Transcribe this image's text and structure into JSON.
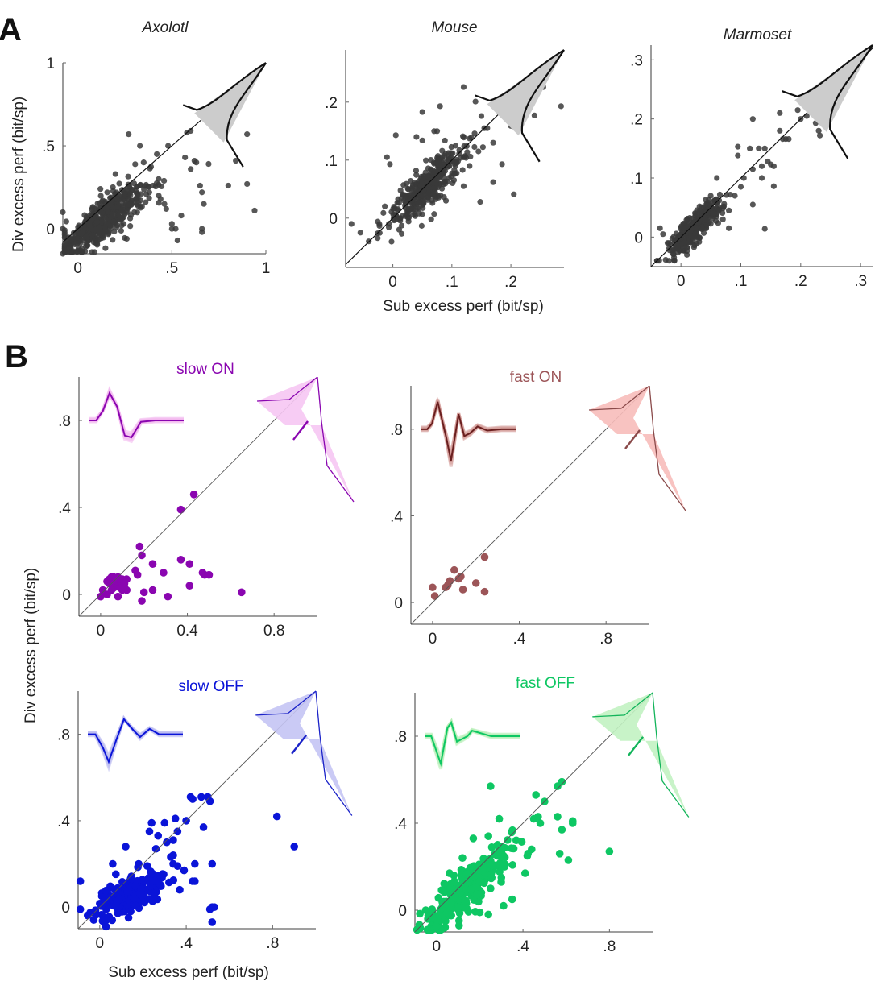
{
  "figure": {
    "panel_a_letter": "A",
    "panel_b_letter": "B",
    "panel_a_ylabel": "Div excess perf (bit/sp)",
    "panel_a_xlabel": "Sub excess perf (bit/sp)",
    "panel_b_ylabel": "Div excess perf (bit/sp)",
    "panel_b_xlabel": "Sub excess perf (bit/sp)"
  },
  "chart_data": [
    {
      "id": "axolotl",
      "type": "scatter",
      "title": "Axolotl",
      "xlabel": "",
      "ylabel": "Div excess perf (bit/sp)",
      "xlim": [
        -0.08,
        1.0
      ],
      "ylim": [
        -0.15,
        1.0
      ],
      "xticks": [
        0,
        0.5,
        1
      ],
      "xtick_labels": [
        "0",
        ".5",
        "1"
      ],
      "yticks": [
        0,
        0.5,
        1
      ],
      "ytick_labels": [
        "0",
        ".5",
        "1"
      ],
      "color": "#3a3a3a",
      "hist_fill": "#cccccc",
      "hist_line": "#111111",
      "identity_line": true,
      "cluster": {
        "n": 520,
        "cx": 0.1,
        "cy": 0.05,
        "spread": 0.1,
        "slope": 0.85,
        "seed": 11
      },
      "points": [
        [
          0.27,
          0.57
        ],
        [
          0.58,
          0.58
        ],
        [
          0.6,
          0.59
        ],
        [
          0.33,
          0.5
        ],
        [
          0.57,
          0.43
        ],
        [
          0.62,
          0.41
        ],
        [
          0.63,
          0.4
        ],
        [
          0.84,
          0.41
        ],
        [
          0.9,
          0.57
        ],
        [
          0.6,
          0.36
        ],
        [
          0.65,
          0.26
        ],
        [
          0.66,
          0.22
        ],
        [
          0.67,
          0.15
        ],
        [
          0.8,
          0.26
        ],
        [
          0.9,
          0.27
        ],
        [
          0.94,
          0.11
        ],
        [
          0.66,
          0.0
        ],
        [
          0.66,
          -0.02
        ],
        [
          0.53,
          -0.07
        ],
        [
          0.52,
          0.0
        ],
        [
          0.5,
          0.0
        ],
        [
          0.5,
          0.03
        ],
        [
          0.55,
          0.08
        ],
        [
          0.47,
          0.12
        ],
        [
          0.46,
          0.15
        ],
        [
          0.43,
          0.2
        ],
        [
          0.4,
          0.26
        ],
        [
          0.43,
          0.3
        ],
        [
          0.38,
          0.22
        ],
        [
          0.44,
          0.18
        ],
        [
          0.36,
          0.16
        ],
        [
          0.3,
          0.1
        ],
        [
          0.26,
          -0.06
        ],
        [
          -0.08,
          0.1
        ],
        [
          -0.08,
          0.0
        ],
        [
          -0.08,
          -0.15
        ],
        [
          0.35,
          0.4
        ],
        [
          0.42,
          0.45
        ],
        [
          0.2,
          0.33
        ],
        [
          0.12,
          0.24
        ],
        [
          0.48,
          0.5
        ]
      ],
      "hist_marker": "black-outline"
    },
    {
      "id": "mouse",
      "type": "scatter",
      "title": "Mouse",
      "xlabel": "Sub excess perf (bit/sp)",
      "ylabel": "",
      "xlim": [
        -0.08,
        0.29
      ],
      "ylim": [
        -0.085,
        0.29
      ],
      "xticks": [
        0,
        0.1,
        0.2
      ],
      "xtick_labels": [
        "0",
        ".1",
        ".2"
      ],
      "yticks": [
        0,
        0.1,
        0.2
      ],
      "ytick_labels": [
        "0",
        ".1",
        ".2"
      ],
      "color": "#3a3a3a",
      "hist_fill": "#cccccc",
      "hist_line": "#111111",
      "identity_line": true,
      "cluster": {
        "n": 380,
        "cx": 0.045,
        "cy": 0.05,
        "spread": 0.03,
        "slope": 0.9,
        "seed": 23
      },
      "points": [
        [
          -0.07,
          -0.01
        ],
        [
          -0.055,
          -0.025
        ],
        [
          0.015,
          -0.027
        ],
        [
          0.005,
          0.143
        ],
        [
          0.04,
          0.14
        ],
        [
          0.05,
          0.134
        ],
        [
          0.05,
          0.183
        ],
        [
          0.08,
          0.193
        ],
        [
          0.12,
          0.226
        ],
        [
          0.14,
          0.201
        ],
        [
          0.15,
          0.176
        ],
        [
          0.155,
          0.155
        ],
        [
          0.17,
          0.13
        ],
        [
          0.17,
          0.062
        ],
        [
          0.185,
          0.093
        ],
        [
          0.2,
          0.159
        ],
        [
          0.205,
          0.041
        ],
        [
          0.148,
          0.028
        ],
        [
          0.24,
          0.177
        ],
        [
          0.255,
          0.226
        ],
        [
          0.26,
          0.254
        ],
        [
          0.285,
          0.193
        ],
        [
          0.12,
          0.055
        ],
        [
          0.09,
          0.03
        ],
        [
          0.065,
          -0.002
        ],
        [
          0.07,
          0.007
        ],
        [
          -0.01,
          0.105
        ],
        [
          -0.005,
          0.093
        ],
        [
          0.07,
          0.15
        ],
        [
          0.075,
          0.15
        ],
        [
          0.145,
          0.115
        ],
        [
          0.13,
          0.09
        ],
        [
          0.16,
          0.155
        ]
      ]
    },
    {
      "id": "marmoset",
      "type": "scatter",
      "title": "Marmoset",
      "xlabel": "",
      "ylabel": "",
      "xlim": [
        -0.05,
        0.32
      ],
      "ylim": [
        -0.05,
        0.325
      ],
      "xticks": [
        0,
        0.1,
        0.2,
        0.3
      ],
      "xtick_labels": [
        "0",
        ".1",
        ".2",
        ".3"
      ],
      "yticks": [
        0,
        0.1,
        0.2,
        0.3
      ],
      "ytick_labels": [
        "0",
        ".1",
        ".2",
        ".3"
      ],
      "color": "#3a3a3a",
      "hist_fill": "#cccccc",
      "hist_line": "#111111",
      "identity_line": true,
      "cluster": {
        "n": 330,
        "cx": 0.02,
        "cy": 0.02,
        "spread": 0.02,
        "slope": 0.98,
        "seed": 37
      },
      "points": [
        [
          0.12,
          0.2
        ],
        [
          0.165,
          0.21
        ],
        [
          0.195,
          0.215
        ],
        [
          0.22,
          0.225
        ],
        [
          0.2,
          0.2
        ],
        [
          0.21,
          0.205
        ],
        [
          0.225,
          0.193
        ],
        [
          0.23,
          0.18
        ],
        [
          0.232,
          0.172
        ],
        [
          0.165,
          0.18
        ],
        [
          0.17,
          0.166
        ],
        [
          0.175,
          0.166
        ],
        [
          0.18,
          0.166
        ],
        [
          0.095,
          0.153
        ],
        [
          0.095,
          0.138
        ],
        [
          0.115,
          0.15
        ],
        [
          0.13,
          0.15
        ],
        [
          0.14,
          0.15
        ],
        [
          0.15,
          0.123
        ],
        [
          0.155,
          0.12
        ],
        [
          0.155,
          0.086
        ],
        [
          0.14,
          0.014
        ],
        [
          0.12,
          0.055
        ],
        [
          0.08,
          0.045
        ],
        [
          0.065,
          0.072
        ],
        [
          0.06,
          0.1
        ],
        [
          0.105,
          0.1
        ],
        [
          0.12,
          0.115
        ],
        [
          0.135,
          0.1
        ],
        [
          0.09,
          0.07
        ],
        [
          0.1,
          0.085
        ],
        [
          -0.035,
          0.015
        ],
        [
          -0.03,
          0.005
        ],
        [
          -0.02,
          -0.01
        ],
        [
          0.01,
          -0.03
        ],
        [
          0.07,
          0.03
        ],
        [
          0.08,
          0.015
        ],
        [
          0.055,
          0.04
        ],
        [
          0.135,
          0.12
        ],
        [
          0.145,
          0.128
        ]
      ]
    },
    {
      "id": "slow-on",
      "type": "scatter",
      "title": "slow ON",
      "xlabel": "",
      "ylabel": "",
      "xlim": [
        -0.1,
        1.0
      ],
      "ylim": [
        -0.1,
        1.0
      ],
      "xticks": [
        0,
        0.4,
        0.8
      ],
      "xtick_labels": [
        "0",
        "0.4",
        "0.8"
      ],
      "yticks": [
        0,
        0.4,
        0.8
      ],
      "ytick_labels": [
        "0",
        ".4",
        ".8"
      ],
      "color": "#8a06b0",
      "hist_fill": "#f6c6f3",
      "hist_line": "#8a06b0",
      "trace_light": "#f3b6ef",
      "identity_line": true,
      "cluster": {
        "n": 0
      },
      "points": [
        [
          0.43,
          0.46
        ],
        [
          0.37,
          0.39
        ],
        [
          0.18,
          0.22
        ],
        [
          0.19,
          0.18
        ],
        [
          0.24,
          0.14
        ],
        [
          0.37,
          0.16
        ],
        [
          0.41,
          0.14
        ],
        [
          0.47,
          0.1
        ],
        [
          0.48,
          0.09
        ],
        [
          0.5,
          0.09
        ],
        [
          0.29,
          0.1
        ],
        [
          0.41,
          0.04
        ],
        [
          0.24,
          0.02
        ],
        [
          0.2,
          0.01
        ],
        [
          0.19,
          -0.03
        ],
        [
          0.31,
          -0.01
        ],
        [
          0.65,
          0.01
        ],
        [
          0.16,
          0.11
        ],
        [
          0.17,
          0.09
        ],
        [
          0.0,
          -0.01
        ],
        [
          0.01,
          0.02
        ],
        [
          0.03,
          0.0
        ],
        [
          0.04,
          0.05
        ],
        [
          0.05,
          0.08
        ],
        [
          0.06,
          0.06
        ],
        [
          0.07,
          0.04
        ],
        [
          0.08,
          0.08
        ],
        [
          0.09,
          0.06
        ],
        [
          0.1,
          0.07
        ],
        [
          0.11,
          0.05
        ],
        [
          0.12,
          0.07
        ],
        [
          0.12,
          0.02
        ],
        [
          0.1,
          0.02
        ],
        [
          0.08,
          -0.01
        ],
        [
          0.06,
          0.03
        ],
        [
          0.05,
          0.02
        ],
        [
          0.03,
          0.06
        ],
        [
          0.07,
          0.07
        ],
        [
          0.09,
          0.03
        ],
        [
          0.11,
          0.03
        ],
        [
          0.04,
          0.07
        ],
        [
          0.06,
          0.08
        ]
      ],
      "trace": "slow"
    },
    {
      "id": "fast-on",
      "type": "scatter",
      "title": "fast ON",
      "xlabel": "",
      "ylabel": "",
      "xlim": [
        -0.1,
        1.0
      ],
      "ylim": [
        -0.1,
        1.0
      ],
      "xticks": [
        0,
        0.4,
        0.8
      ],
      "xtick_labels": [
        "0",
        ".4",
        ".8"
      ],
      "yticks": [
        0,
        0.4,
        0.8
      ],
      "ytick_labels": [
        "0",
        ".4",
        ".8"
      ],
      "color": "#9c5558",
      "hist_fill": "#f7bdba",
      "hist_line": "#8a4a4a",
      "trace_light": "#d49a98",
      "trace_dark": "#6a1f1f",
      "identity_line": true,
      "cluster": {
        "n": 0
      },
      "points": [
        [
          0.24,
          0.21
        ],
        [
          0.1,
          0.15
        ],
        [
          0.13,
          0.12
        ],
        [
          0.12,
          0.11
        ],
        [
          0.08,
          0.1
        ],
        [
          0.07,
          0.08
        ],
        [
          0.06,
          0.07
        ],
        [
          0.14,
          0.06
        ],
        [
          0.2,
          0.09
        ],
        [
          0.24,
          0.05
        ],
        [
          0.0,
          0.07
        ],
        [
          0.01,
          0.03
        ]
      ],
      "trace": "fast"
    },
    {
      "id": "slow-off",
      "type": "scatter",
      "title": "slow OFF",
      "xlabel": "Sub excess perf (bit/sp)",
      "ylabel": "",
      "xlim": [
        -0.1,
        1.0
      ],
      "ylim": [
        -0.1,
        1.0
      ],
      "xticks": [
        0,
        0.4,
        0.8
      ],
      "xtick_labels": [
        "0",
        ".4",
        ".8"
      ],
      "yticks": [
        0,
        0.4,
        0.8
      ],
      "ytick_labels": [
        "0",
        ".4",
        ".8"
      ],
      "color": "#0a14d8",
      "hist_fill": "#c4c4f4",
      "hist_line": "#1a22c8",
      "trace_light": "#b8b8f0",
      "identity_line": true,
      "cluster": {
        "n": 170,
        "cx": 0.1,
        "cy": 0.05,
        "spread": 0.08,
        "slope": 0.5,
        "seed": 51
      },
      "points": [
        [
          0.42,
          0.51
        ],
        [
          0.43,
          0.5
        ],
        [
          0.47,
          0.51
        ],
        [
          0.5,
          0.51
        ],
        [
          0.51,
          0.49
        ],
        [
          0.82,
          0.42
        ],
        [
          0.9,
          0.28
        ],
        [
          0.24,
          0.39
        ],
        [
          0.3,
          0.39
        ],
        [
          0.35,
          0.41
        ],
        [
          0.4,
          0.4
        ],
        [
          0.36,
          0.35
        ],
        [
          0.48,
          0.37
        ],
        [
          0.23,
          0.35
        ],
        [
          0.27,
          0.33
        ],
        [
          0.31,
          0.3
        ],
        [
          0.34,
          0.31
        ],
        [
          0.12,
          0.28
        ],
        [
          0.26,
          0.27
        ],
        [
          0.34,
          0.24
        ],
        [
          0.06,
          0.2
        ],
        [
          0.18,
          0.2
        ],
        [
          0.22,
          0.19
        ],
        [
          0.34,
          0.2
        ],
        [
          0.36,
          0.19
        ],
        [
          0.39,
          0.17
        ],
        [
          0.44,
          0.2
        ],
        [
          0.52,
          0.2
        ],
        [
          0.43,
          0.12
        ],
        [
          0.44,
          0.12
        ],
        [
          0.37,
          0.08
        ],
        [
          0.51,
          -0.01
        ],
        [
          0.52,
          0.0
        ],
        [
          0.53,
          0.0
        ],
        [
          0.52,
          -0.07
        ],
        [
          -0.09,
          0.12
        ],
        [
          -0.09,
          -0.01
        ],
        [
          0.03,
          -0.06
        ]
      ],
      "trace": "slow-off"
    },
    {
      "id": "fast-off",
      "type": "scatter",
      "title": "fast OFF",
      "xlabel": "",
      "ylabel": "",
      "xlim": [
        -0.1,
        1.0
      ],
      "ylim": [
        -0.1,
        1.0
      ],
      "xticks": [
        0,
        0.4,
        0.8
      ],
      "xtick_labels": [
        "0",
        ".4",
        ".8"
      ],
      "yticks": [
        0,
        0.4,
        0.8
      ],
      "ytick_labels": [
        "0",
        ".4",
        ".8"
      ],
      "color": "#0ec763",
      "hist_fill": "#c2f2c2",
      "hist_line": "#12b45a",
      "trace_light": "#b6eeb6",
      "identity_line": true,
      "cluster": {
        "n": 300,
        "cx": 0.1,
        "cy": 0.08,
        "spread": 0.08,
        "slope": 0.92,
        "seed": 67
      },
      "points": [
        [
          0.25,
          0.57
        ],
        [
          0.56,
          0.57
        ],
        [
          0.58,
          0.59
        ],
        [
          0.46,
          0.53
        ],
        [
          0.5,
          0.5
        ],
        [
          0.45,
          0.42
        ],
        [
          0.47,
          0.43
        ],
        [
          0.48,
          0.4
        ],
        [
          0.56,
          0.43
        ],
        [
          0.63,
          0.41
        ],
        [
          0.63,
          0.4
        ],
        [
          0.58,
          0.37
        ],
        [
          0.57,
          0.26
        ],
        [
          0.61,
          0.23
        ],
        [
          0.8,
          0.27
        ],
        [
          0.44,
          0.28
        ],
        [
          0.42,
          0.25
        ],
        [
          0.41,
          0.17
        ],
        [
          0.35,
          0.05
        ],
        [
          0.31,
          0.02
        ],
        [
          0.29,
          0.42
        ],
        [
          0.24,
          0.34
        ],
        [
          0.17,
          0.33
        ],
        [
          0.12,
          0.24
        ],
        [
          0.08,
          0.16
        ],
        [
          0.06,
          0.17
        ],
        [
          -0.05,
          0.0
        ],
        [
          -0.04,
          -0.04
        ],
        [
          0.24,
          -0.02
        ],
        [
          0.2,
          -0.01
        ],
        [
          0.3,
          0.15
        ],
        [
          0.25,
          0.1
        ]
      ],
      "trace": "fast-off"
    }
  ]
}
